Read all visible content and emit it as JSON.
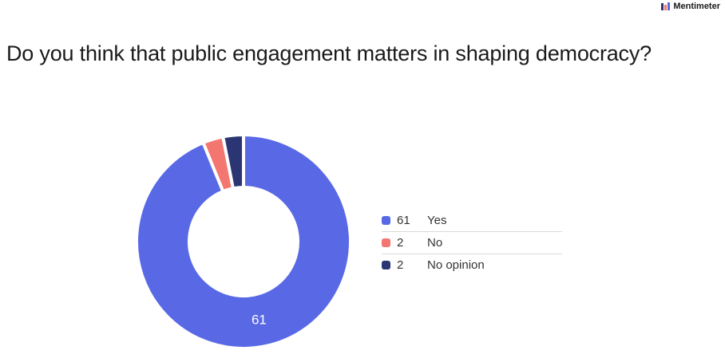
{
  "brand": {
    "name": "Mentimeter"
  },
  "question": {
    "title": "Do you think that public engagement matters in shaping democracy?"
  },
  "chart_data": {
    "type": "pie",
    "variant": "donut",
    "title": "Do you think that public engagement matters in shaping democracy?",
    "categories": [
      "Yes",
      "No",
      "No opinion"
    ],
    "values": [
      61,
      2,
      2
    ],
    "colors": [
      "#5969e6",
      "#f47670",
      "#2b3573"
    ],
    "legend_position": "right",
    "slice_labels": [
      "61",
      "",
      ""
    ]
  }
}
